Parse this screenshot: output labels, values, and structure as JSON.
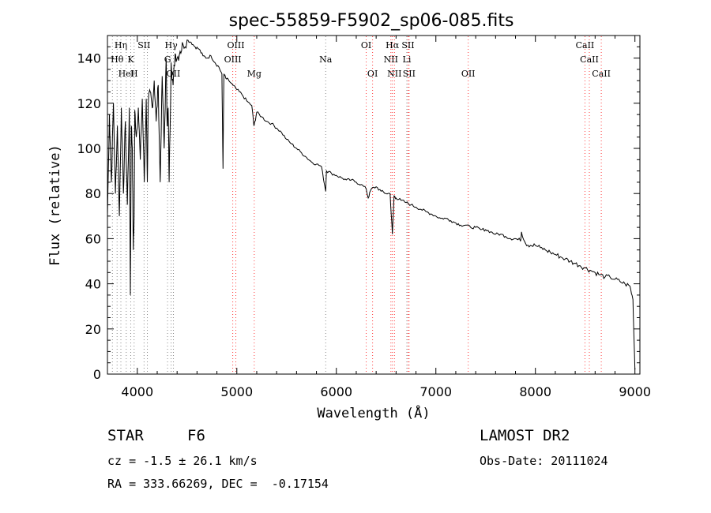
{
  "chart_data": {
    "type": "line",
    "title": "spec-55859-F5902_sp06-085.fits",
    "xlabel": "Wavelength (Å)",
    "ylabel": "Flux (relative)",
    "xlim": [
      3700,
      9050
    ],
    "ylim": [
      0,
      150
    ],
    "xticks": [
      4000,
      5000,
      6000,
      7000,
      8000,
      9000
    ],
    "yticks": [
      0,
      20,
      40,
      60,
      80,
      100,
      120,
      140
    ],
    "grid": false,
    "series": [
      {
        "x": [
          3700,
          3720,
          3740,
          3760,
          3780,
          3800,
          3820,
          3840,
          3860,
          3880,
          3900,
          3920,
          3930,
          3940,
          3950,
          3960,
          3968,
          3975,
          3990,
          4010,
          4030,
          4050,
          4070,
          4090,
          4101,
          4110,
          4130,
          4150,
          4170,
          4190,
          4210,
          4230,
          4250,
          4270,
          4290,
          4300,
          4310,
          4320,
          4340,
          4360,
          4380,
          4400,
          4430,
          4460,
          4500,
          4540,
          4580,
          4620,
          4660,
          4700,
          4740,
          4780,
          4820,
          4850,
          4861,
          4870,
          4890,
          4920,
          4960,
          5000,
          5050,
          5100,
          5150,
          5172,
          5183,
          5200,
          5250,
          5300,
          5350,
          5400,
          5450,
          5500,
          5550,
          5600,
          5650,
          5700,
          5750,
          5800,
          5850,
          5893,
          5900,
          5950,
          6000,
          6050,
          6100,
          6150,
          6200,
          6250,
          6300,
          6320,
          6350,
          6400,
          6450,
          6500,
          6540,
          6563,
          6580,
          6600,
          6650,
          6700,
          6750,
          6800,
          6850,
          6900,
          6950,
          7000,
          7050,
          7100,
          7150,
          7200,
          7250,
          7300,
          7350,
          7400,
          7450,
          7500,
          7550,
          7600,
          7650,
          7700,
          7750,
          7800,
          7850,
          7860,
          7900,
          7950,
          8000,
          8050,
          8100,
          8150,
          8200,
          8250,
          8300,
          8350,
          8400,
          8450,
          8500,
          8550,
          8600,
          8650,
          8700,
          8750,
          8800,
          8850,
          8900,
          8950,
          8980,
          9000
        ],
        "values": [
          70,
          115,
          85,
          120,
          80,
          110,
          70,
          118,
          80,
          112,
          75,
          118,
          35,
          110,
          100,
          55,
          70,
          117,
          105,
          118,
          95,
          122,
          85,
          122,
          85,
          120,
          125,
          118,
          130,
          112,
          128,
          85,
          132,
          100,
          140,
          110,
          118,
          85,
          138,
          128,
          142,
          140,
          143,
          146,
          148,
          147,
          145,
          144,
          141,
          140,
          141,
          138,
          136,
          133,
          91,
          133,
          131,
          130,
          128,
          126,
          124,
          121,
          119,
          110,
          112,
          116,
          114,
          112,
          111,
          109,
          107,
          104,
          102,
          100,
          98,
          96,
          94,
          93,
          92,
          81,
          90,
          89,
          88,
          87,
          86,
          86,
          85,
          84,
          82,
          78,
          82,
          83,
          81,
          80,
          80,
          62,
          79,
          78,
          77,
          76,
          75,
          74,
          73,
          72,
          71,
          70,
          69,
          69,
          68,
          67,
          66,
          66,
          65,
          65,
          64,
          64,
          63,
          62,
          62,
          61,
          60,
          60,
          59,
          63,
          58,
          57,
          57,
          56,
          55,
          54,
          53,
          52,
          51,
          50,
          49,
          48,
          47,
          46,
          45,
          44,
          43,
          43,
          42,
          41,
          40,
          39,
          33,
          2
        ]
      }
    ],
    "line_labels": [
      {
        "text": "Hη",
        "x": 3835,
        "row": 0
      },
      {
        "text": "SII",
        "x": 4068,
        "row": 0
      },
      {
        "text": "Hγ",
        "x": 4340,
        "row": 0
      },
      {
        "text": "OIII",
        "x": 4990,
        "row": 0
      },
      {
        "text": "OI",
        "x": 6300,
        "row": 0
      },
      {
        "text": "Hα",
        "x": 6563,
        "row": 0
      },
      {
        "text": "SII",
        "x": 6720,
        "row": 0
      },
      {
        "text": "CaII",
        "x": 8498,
        "row": 0
      },
      {
        "text": "Hθ",
        "x": 3797,
        "row": 1
      },
      {
        "text": "K",
        "x": 3934,
        "row": 1
      },
      {
        "text": "G",
        "x": 4304,
        "row": 1
      },
      {
        "text": "OIII",
        "x": 4959,
        "row": 1
      },
      {
        "text": "Na",
        "x": 5893,
        "row": 1
      },
      {
        "text": "NII",
        "x": 6548,
        "row": 1
      },
      {
        "text": "Li",
        "x": 6708,
        "row": 1
      },
      {
        "text": "CaII",
        "x": 8542,
        "row": 1
      },
      {
        "text": "HeI",
        "x": 3889,
        "row": 2
      },
      {
        "text": "H",
        "x": 3968,
        "row": 2
      },
      {
        "text": "OII",
        "x": 4363,
        "row": 2
      },
      {
        "text": "Mg",
        "x": 5175,
        "row": 2
      },
      {
        "text": "OI",
        "x": 6364,
        "row": 2
      },
      {
        "text": "NII",
        "x": 6584,
        "row": 2
      },
      {
        "text": "SII",
        "x": 6731,
        "row": 2
      },
      {
        "text": "OII",
        "x": 7325,
        "row": 2
      },
      {
        "text": "CaII",
        "x": 8662,
        "row": 2
      }
    ],
    "line_positions": [
      3750,
      3797,
      3835,
      3889,
      3934,
      3968,
      4068,
      4101,
      4304,
      4340,
      4363,
      4959,
      4990,
      5175,
      5893,
      6300,
      6364,
      6548,
      6563,
      6584,
      6708,
      6720,
      6731,
      7325,
      8498,
      8542,
      8662
    ]
  },
  "info": {
    "class": "STAR",
    "subclass": "F6",
    "cz": "cz = -1.5 ± 26.1 km/s",
    "radec": "RA = 333.66269, DEC =  -0.17154",
    "survey": "LAMOST DR2",
    "obsdate": "Obs-Date: 20111024"
  },
  "colors": {
    "spectrum": "#000000",
    "emission_lines": "#ff3b3b",
    "absorption_lines": "#888888",
    "axes": "#000000"
  }
}
